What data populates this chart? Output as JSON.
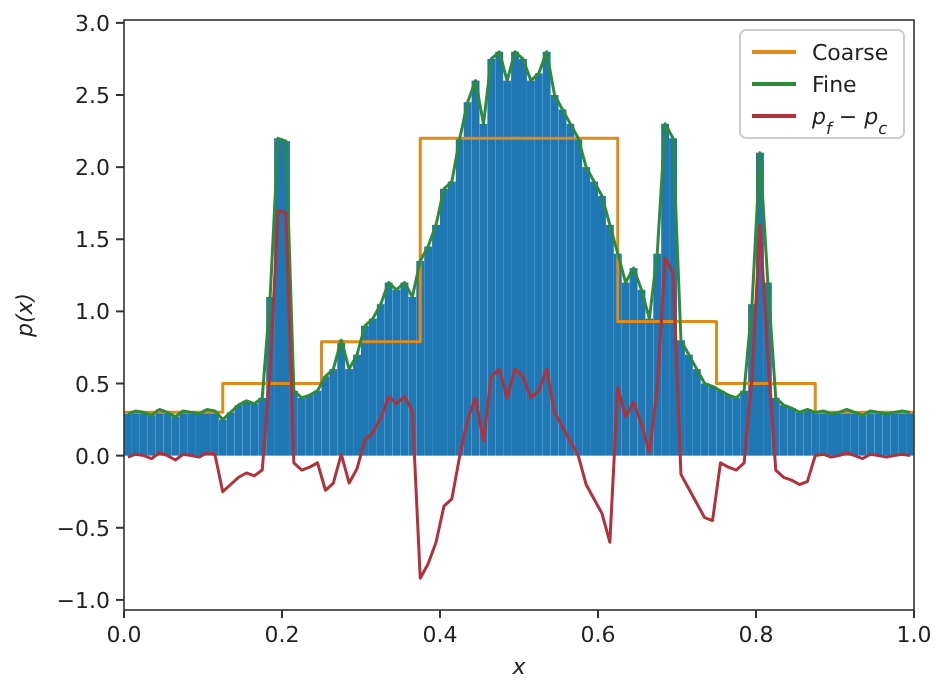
{
  "chart_data": {
    "type": "histogram",
    "xlabel": "x",
    "ylabel": "p(x)",
    "color": "#1f77b4",
    "bins": [
      0,
      0.01,
      0.02,
      0.03,
      0.04,
      0.05,
      0.06,
      0.07,
      0.08,
      0.09,
      0.1,
      0.11,
      0.12,
      0.13,
      0.14,
      0.15,
      0.16,
      0.17,
      0.18,
      0.19,
      0.2,
      0.21,
      0.22,
      0.23,
      0.24,
      0.25,
      0.26,
      0.27,
      0.28,
      0.29,
      0.3,
      0.31,
      0.32,
      0.33,
      0.34,
      0.35,
      0.36,
      0.37,
      0.38,
      0.39,
      0.4,
      0.41,
      0.42,
      0.43,
      0.44,
      0.45,
      0.46,
      0.47,
      0.48,
      0.49,
      0.5,
      0.51,
      0.52,
      0.53,
      0.54,
      0.55,
      0.56,
      0.57,
      0.58,
      0.59,
      0.6,
      0.61,
      0.62,
      0.63,
      0.64,
      0.65,
      0.66,
      0.67,
      0.68,
      0.69,
      0.7,
      0.71,
      0.72,
      0.73,
      0.74,
      0.75,
      0.76,
      0.77,
      0.78,
      0.79,
      0.8,
      0.81,
      0.82,
      0.83,
      0.84,
      0.85,
      0.86,
      0.87,
      0.88,
      0.89,
      0.9,
      0.91,
      0.92,
      0.93,
      0.94,
      0.95,
      0.96,
      0.97,
      0.98,
      0.99,
      1
    ],
    "values": [
      0.29,
      0.31,
      0.3,
      0.28,
      0.32,
      0.3,
      0.27,
      0.31,
      0.3,
      0.29,
      0.32,
      0.31,
      0.25,
      0.3,
      0.35,
      0.38,
      0.36,
      0.4,
      1.1,
      2.2,
      2.18,
      0.45,
      0.4,
      0.42,
      0.45,
      0.55,
      0.6,
      0.8,
      0.6,
      0.7,
      0.9,
      0.95,
      1.05,
      1.2,
      1.15,
      1.2,
      1.1,
      1.35,
      1.45,
      1.6,
      1.85,
      1.9,
      2.2,
      2.45,
      2.6,
      2.3,
      2.75,
      2.8,
      2.6,
      2.8,
      2.75,
      2.6,
      2.65,
      2.8,
      2.5,
      2.4,
      2.3,
      2.2,
      2.0,
      1.9,
      1.8,
      1.6,
      1.4,
      1.2,
      1.3,
      1.15,
      0.95,
      1.4,
      2.3,
      2.2,
      0.8,
      0.7,
      0.6,
      0.5,
      0.48,
      0.45,
      0.42,
      0.4,
      0.45,
      1.05,
      2.1,
      1.2,
      0.4,
      0.35,
      0.33,
      0.3,
      0.32,
      0.3,
      0.31,
      0.29,
      0.3,
      0.32,
      0.3,
      0.28,
      0.31,
      0.3,
      0.29,
      0.3,
      0.31,
      0.3
    ],
    "series": [
      {
        "name": "Coarse",
        "type": "step",
        "color": "#e08a1a",
        "x": [
          0,
          0.125,
          0.25,
          0.375,
          0.5,
          0.625,
          0.75,
          0.875,
          1
        ],
        "values": [
          0.3,
          0.5,
          0.79,
          2.2,
          2.2,
          0.93,
          0.5,
          0.3,
          0.3
        ]
      },
      {
        "name": "Fine",
        "type": "line",
        "color": "#2e8b3a",
        "x": [
          0.005,
          0.015,
          0.025,
          0.035,
          0.045,
          0.055,
          0.065,
          0.075,
          0.085,
          0.095,
          0.105,
          0.115,
          0.125,
          0.135,
          0.145,
          0.155,
          0.165,
          0.175,
          0.185,
          0.195,
          0.205,
          0.215,
          0.225,
          0.235,
          0.245,
          0.255,
          0.265,
          0.275,
          0.285,
          0.295,
          0.305,
          0.315,
          0.325,
          0.335,
          0.345,
          0.355,
          0.365,
          0.375,
          0.385,
          0.395,
          0.405,
          0.415,
          0.425,
          0.435,
          0.445,
          0.455,
          0.465,
          0.475,
          0.485,
          0.495,
          0.505,
          0.515,
          0.525,
          0.535,
          0.545,
          0.555,
          0.565,
          0.575,
          0.585,
          0.595,
          0.605,
          0.615,
          0.625,
          0.635,
          0.645,
          0.655,
          0.665,
          0.675,
          0.685,
          0.695,
          0.705,
          0.715,
          0.725,
          0.735,
          0.745,
          0.755,
          0.765,
          0.775,
          0.785,
          0.795,
          0.805,
          0.815,
          0.825,
          0.835,
          0.845,
          0.855,
          0.865,
          0.875,
          0.885,
          0.895,
          0.905,
          0.915,
          0.925,
          0.935,
          0.945,
          0.955,
          0.965,
          0.975,
          0.985,
          0.995
        ],
        "values": [
          0.29,
          0.31,
          0.3,
          0.28,
          0.32,
          0.3,
          0.27,
          0.31,
          0.3,
          0.29,
          0.32,
          0.31,
          0.25,
          0.3,
          0.35,
          0.38,
          0.36,
          0.4,
          1.1,
          2.2,
          2.18,
          0.45,
          0.4,
          0.42,
          0.45,
          0.55,
          0.6,
          0.8,
          0.6,
          0.7,
          0.9,
          0.95,
          1.05,
          1.2,
          1.15,
          1.2,
          1.1,
          1.35,
          1.45,
          1.6,
          1.85,
          1.9,
          2.2,
          2.45,
          2.6,
          2.3,
          2.75,
          2.8,
          2.6,
          2.8,
          2.75,
          2.6,
          2.65,
          2.8,
          2.5,
          2.4,
          2.3,
          2.2,
          2.0,
          1.9,
          1.8,
          1.6,
          1.4,
          1.2,
          1.3,
          1.15,
          0.95,
          1.4,
          2.3,
          2.2,
          0.8,
          0.7,
          0.6,
          0.5,
          0.48,
          0.45,
          0.42,
          0.4,
          0.45,
          1.05,
          2.1,
          1.2,
          0.4,
          0.35,
          0.33,
          0.3,
          0.32,
          0.3,
          0.31,
          0.29,
          0.3,
          0.32,
          0.3,
          0.28,
          0.31,
          0.3,
          0.29,
          0.3,
          0.31,
          0.3
        ]
      },
      {
        "name": "p$_{f}$ − p$_{c}$",
        "type": "line",
        "color": "#b2323c",
        "x": [
          0.005,
          0.015,
          0.025,
          0.035,
          0.045,
          0.055,
          0.065,
          0.075,
          0.085,
          0.095,
          0.105,
          0.115,
          0.125,
          0.135,
          0.145,
          0.155,
          0.165,
          0.175,
          0.185,
          0.195,
          0.205,
          0.215,
          0.225,
          0.235,
          0.245,
          0.255,
          0.265,
          0.275,
          0.285,
          0.295,
          0.305,
          0.315,
          0.325,
          0.335,
          0.345,
          0.355,
          0.365,
          0.375,
          0.385,
          0.395,
          0.405,
          0.415,
          0.425,
          0.435,
          0.445,
          0.455,
          0.465,
          0.475,
          0.485,
          0.495,
          0.505,
          0.515,
          0.525,
          0.535,
          0.545,
          0.555,
          0.565,
          0.575,
          0.585,
          0.595,
          0.605,
          0.615,
          0.625,
          0.635,
          0.645,
          0.655,
          0.665,
          0.675,
          0.685,
          0.695,
          0.705,
          0.715,
          0.725,
          0.735,
          0.745,
          0.755,
          0.765,
          0.775,
          0.785,
          0.795,
          0.805,
          0.815,
          0.825,
          0.835,
          0.845,
          0.855,
          0.865,
          0.875,
          0.885,
          0.895,
          0.905,
          0.915,
          0.925,
          0.935,
          0.945,
          0.955,
          0.965,
          0.975,
          0.985,
          0.995
        ],
        "values": [
          -0.01,
          0.01,
          0,
          -0.02,
          0.02,
          0,
          -0.03,
          0.01,
          0,
          -0.01,
          0.02,
          0.01,
          -0.25,
          -0.2,
          -0.15,
          -0.12,
          -0.14,
          -0.1,
          0.6,
          1.7,
          1.68,
          -0.05,
          -0.1,
          -0.08,
          -0.05,
          -0.24,
          -0.19,
          0.01,
          -0.19,
          -0.09,
          0.11,
          0.16,
          0.26,
          0.41,
          0.36,
          0.41,
          0.31,
          -0.85,
          -0.75,
          -0.6,
          -0.35,
          -0.3,
          0,
          0.25,
          0.4,
          0.1,
          0.55,
          0.6,
          0.4,
          0.6,
          0.55,
          0.4,
          0.45,
          0.6,
          0.3,
          0.2,
          0.1,
          0,
          -0.2,
          -0.3,
          -0.4,
          -0.6,
          0.47,
          0.27,
          0.37,
          0.22,
          0.02,
          0.47,
          1.37,
          1.27,
          -0.13,
          -0.23,
          -0.33,
          -0.43,
          -0.45,
          -0.05,
          -0.08,
          -0.1,
          -0.05,
          0.55,
          1.6,
          0.7,
          -0.1,
          -0.15,
          -0.17,
          -0.2,
          -0.18,
          0,
          0.01,
          -0.01,
          0,
          0.02,
          0,
          -0.02,
          0.01,
          0,
          -0.01,
          0,
          0.01,
          0
        ]
      }
    ],
    "xlim": [
      0,
      1
    ],
    "xticks": [
      {
        "value": 0,
        "label": "0.0"
      },
      {
        "value": 0.2,
        "label": "0.2"
      },
      {
        "value": 0.4,
        "label": "0.4"
      },
      {
        "value": 0.6,
        "label": "0.6"
      },
      {
        "value": 0.8,
        "label": "0.8"
      },
      {
        "value": 1,
        "label": "1.0"
      }
    ],
    "ylim": [
      -1.07,
      3.02
    ],
    "yticks": [
      {
        "value": -1,
        "label": "−1.0"
      },
      {
        "value": -0.5,
        "label": "−0.5"
      },
      {
        "value": 0,
        "label": "0.0"
      },
      {
        "value": 0.5,
        "label": "0.5"
      },
      {
        "value": 1,
        "label": "1.0"
      },
      {
        "value": 1.5,
        "label": "1.5"
      },
      {
        "value": 2,
        "label": "2.0"
      },
      {
        "value": 2.5,
        "label": "2.5"
      },
      {
        "value": 3,
        "label": "3.0"
      }
    ],
    "grid": false,
    "legend": "top right"
  }
}
